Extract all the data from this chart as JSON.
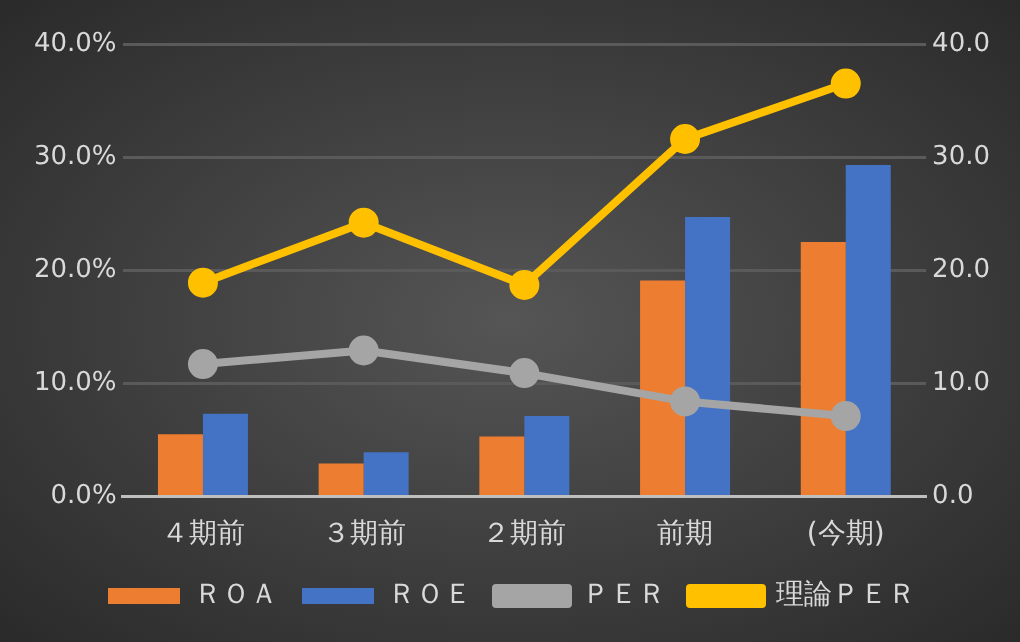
{
  "chart_data": {
    "type": "bar",
    "categories": [
      "４期前",
      "３期前",
      "２期前",
      "前期",
      "(今期)"
    ],
    "series": [
      {
        "name": "ＲＯＡ",
        "color": "#ed7d31",
        "values": [
          5.5,
          2.9,
          5.3,
          19.1,
          22.5
        ]
      },
      {
        "name": "ＲＯＥ",
        "color": "#4472c4",
        "values": [
          7.3,
          3.9,
          7.1,
          24.7,
          29.3
        ]
      },
      {
        "name": "ＰＥＲ",
        "type": "line",
        "axis": "y2",
        "color": "#a5a5a5",
        "values": [
          11.7,
          12.9,
          10.9,
          8.4,
          7.1
        ]
      },
      {
        "name": "理論ＰＥＲ",
        "type": "line",
        "axis": "y2",
        "color": "#ffc000",
        "values": [
          18.9,
          24.2,
          18.7,
          31.6,
          36.5
        ]
      }
    ],
    "ylim": [
      0,
      40
    ],
    "yticks": [
      {
        "value": 0,
        "label": "0.0%"
      },
      {
        "value": 10,
        "label": "10.0%"
      },
      {
        "value": 20,
        "label": "20.0%"
      },
      {
        "value": 30,
        "label": "30.0%"
      },
      {
        "value": 40,
        "label": "40.0%"
      }
    ],
    "y2lim": [
      0,
      40
    ],
    "y2ticks": [
      {
        "value": 0,
        "label": "0.0"
      },
      {
        "value": 10,
        "label": "10.0"
      },
      {
        "value": 20,
        "label": "20.0"
      },
      {
        "value": 30,
        "label": "30.0"
      },
      {
        "value": 40,
        "label": "40.0"
      }
    ],
    "grid": "y",
    "legend": "bottom",
    "marker": "circle",
    "line_style": "solid"
  }
}
